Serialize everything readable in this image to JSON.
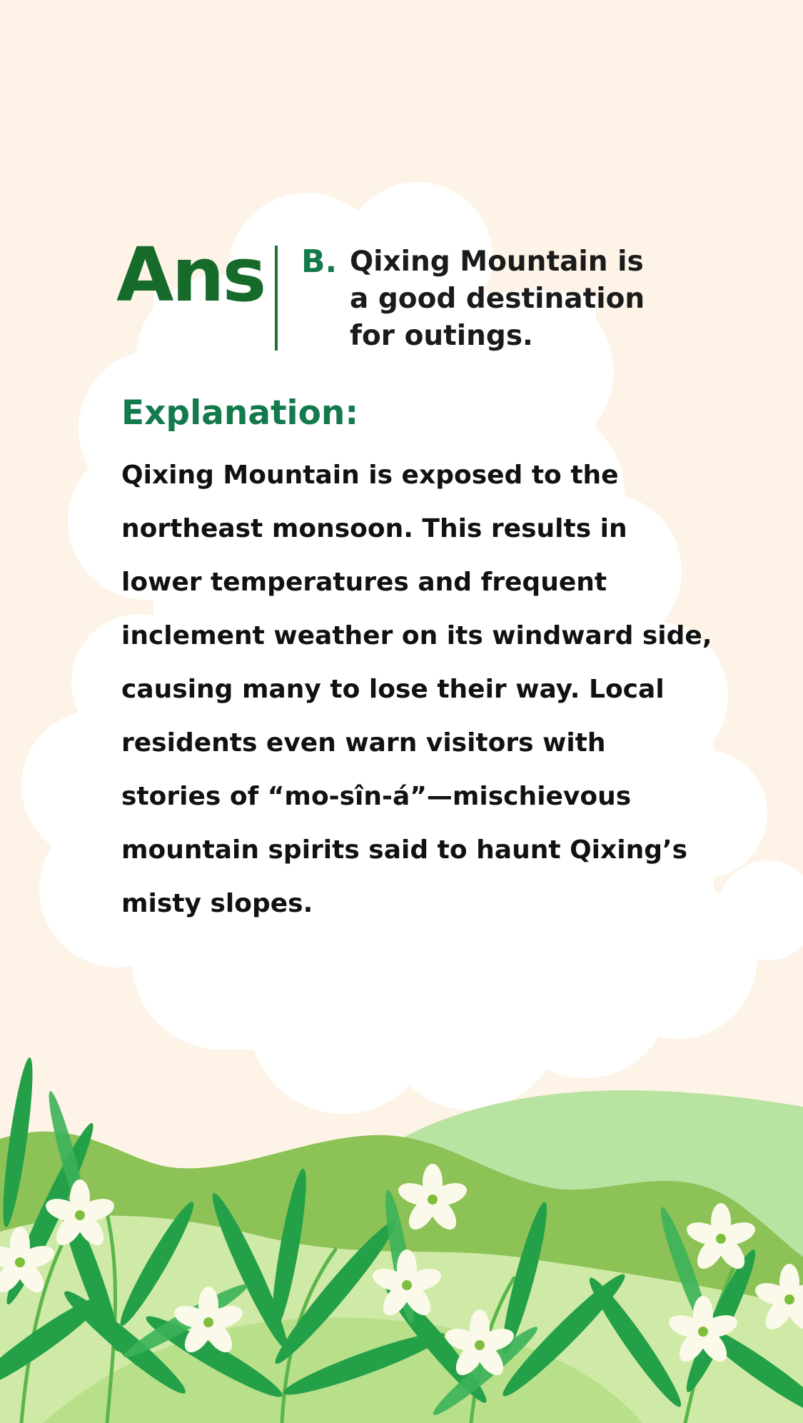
{
  "answer": {
    "label": "Ans",
    "choice_letter": "B.",
    "choice_text": "Qixing Mountain is a good destination for outings."
  },
  "explanation": {
    "heading": "Explanation:",
    "body": "Qixing Mountain is exposed to the northeast monsoon. This results in lower temperatures and frequent inclement weather on its windward side, causing many to lose their way. Local residents even warn visitors with stories of “mo-sîn-á”—mischievous mountain spirits said to haunt Qixing’s misty slopes."
  },
  "colors": {
    "background": "#fdf3e6",
    "cloud": "#ffffff",
    "heading_green": "#137a4c",
    "ans_green": "#176b2a",
    "hill_pale": "#b9e3a0",
    "hill_mid": "#8cc256",
    "hill_light": "#cfeaa6",
    "leaf_dark": "#24a048",
    "leaf_mid": "#3bb35a",
    "flower": "#fbfaea",
    "flower_center": "#7dbf3c"
  }
}
